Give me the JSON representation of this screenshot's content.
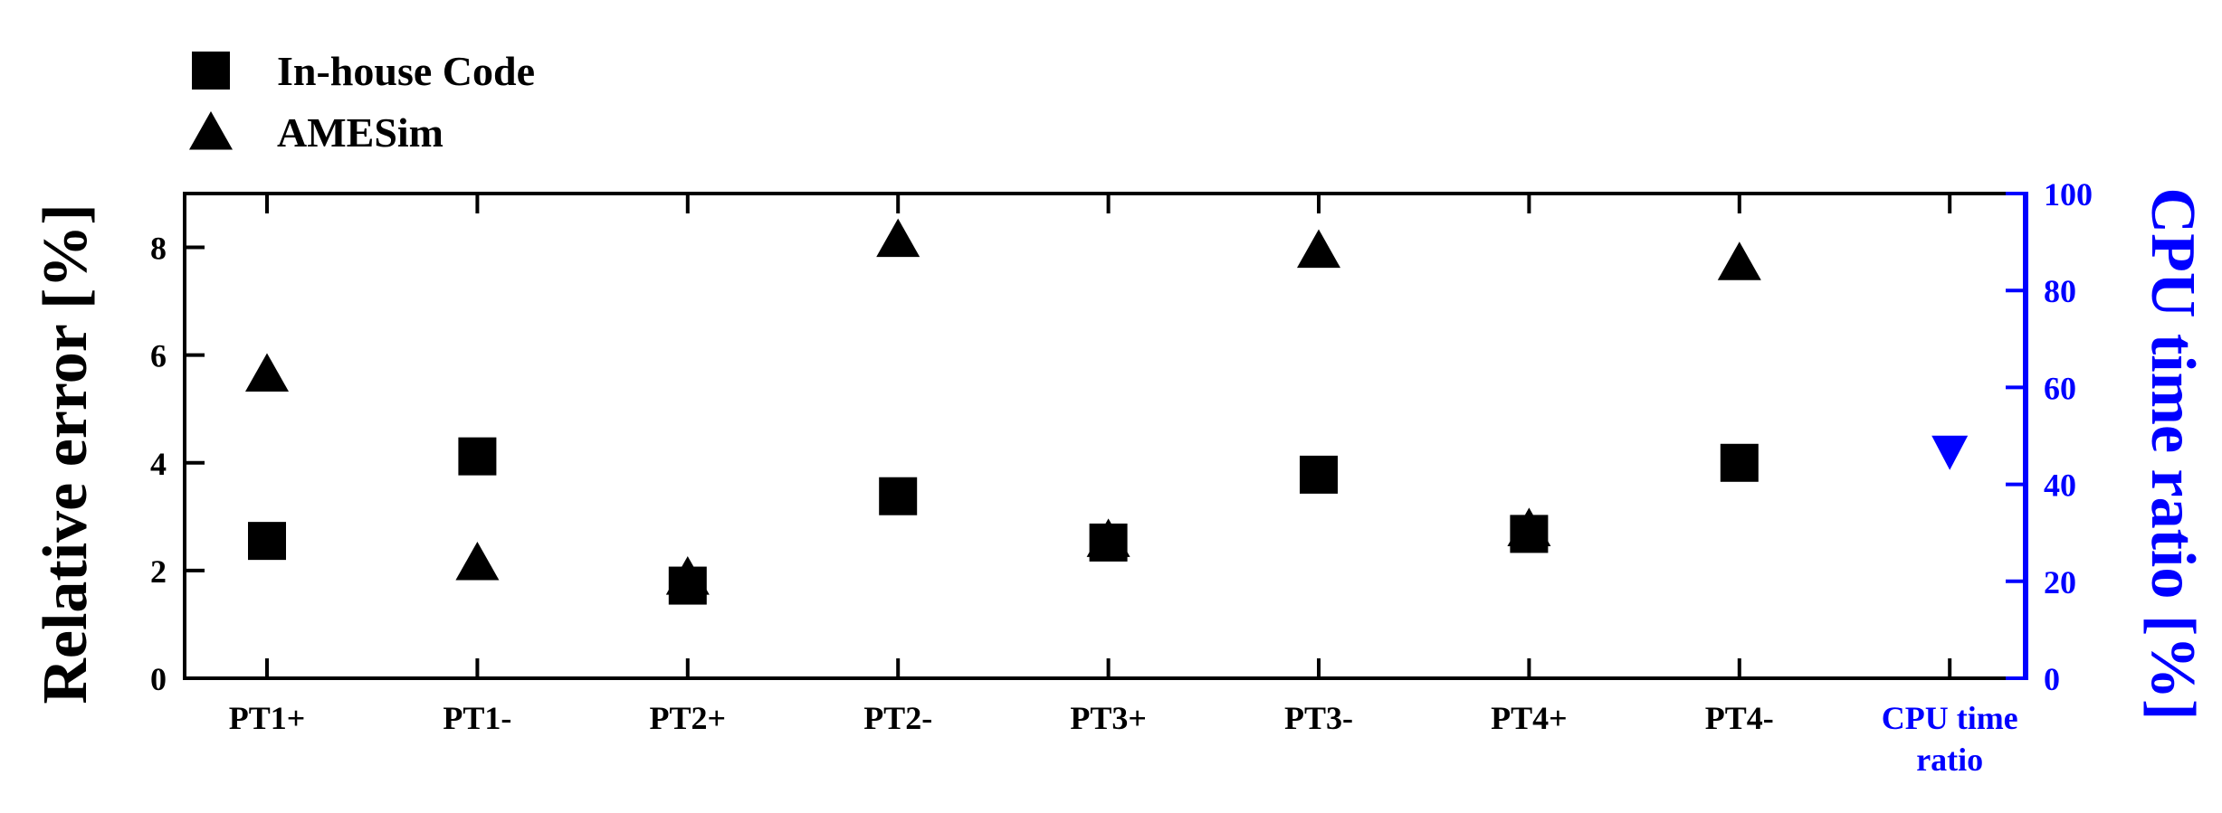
{
  "chart_data": {
    "type": "scatter",
    "categories": [
      "PT1+",
      "PT1-",
      "PT2+",
      "PT2-",
      "PT3+",
      "PT3-",
      "PT4+",
      "PT4-",
      "CPU time ratio"
    ],
    "series": [
      {
        "name": "In-house Code",
        "marker": "square",
        "axis": "left",
        "color": "#000000",
        "values": [
          2.55,
          4.12,
          1.72,
          3.38,
          2.52,
          3.78,
          2.68,
          4.0,
          null
        ]
      },
      {
        "name": "AMESim",
        "marker": "triangle-up",
        "axis": "left",
        "color": "#000000",
        "values": [
          5.65,
          2.15,
          1.88,
          8.15,
          2.58,
          7.95,
          2.78,
          7.72,
          null
        ]
      },
      {
        "marker": "triangle-down",
        "axis": "right",
        "color": "#0000ff",
        "values": [
          null,
          null,
          null,
          null,
          null,
          null,
          null,
          null,
          46.5
        ]
      }
    ],
    "ylabel": "Relative error [%]",
    "ylim": [
      0,
      9
    ],
    "yticks": [
      0,
      2,
      4,
      6,
      8
    ],
    "y2label": "CPU time ratio [%]",
    "y2lim": [
      0,
      100
    ],
    "y2ticks": [
      0,
      20,
      40,
      60,
      80,
      100
    ],
    "y2_color": "#0000ff",
    "legend_position": "top-left, above plot",
    "grid": false
  }
}
